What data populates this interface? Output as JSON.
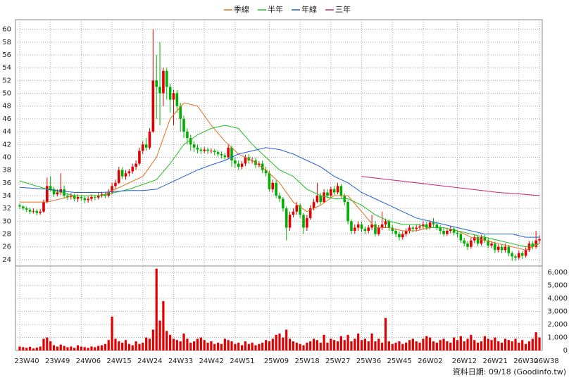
{
  "chart_data": {
    "type": "candlestick",
    "categories": [
      "23W40",
      null,
      null,
      null,
      null,
      null,
      null,
      null,
      null,
      "23W49",
      null,
      null,
      null,
      null,
      null,
      null,
      null,
      null,
      "24W06",
      null,
      null,
      null,
      null,
      null,
      null,
      null,
      null,
      "24W15",
      null,
      null,
      null,
      null,
      null,
      null,
      null,
      null,
      "24W24",
      null,
      null,
      null,
      null,
      null,
      null,
      null,
      null,
      "24W33",
      null,
      null,
      null,
      null,
      null,
      null,
      null,
      null,
      "24W42",
      null,
      null,
      null,
      null,
      null,
      null,
      null,
      null,
      "24W51",
      null,
      null,
      null,
      null,
      null,
      null,
      null,
      null,
      null,
      "25W09",
      null,
      null,
      null,
      null,
      null,
      null,
      null,
      null,
      "25W18",
      null,
      null,
      null,
      null,
      null,
      null,
      null,
      null,
      "25W27",
      null,
      null,
      null,
      null,
      null,
      null,
      null,
      null,
      "25W36",
      null,
      null,
      null,
      null,
      null,
      null,
      null,
      null,
      "25W45",
      null,
      null,
      null,
      null,
      null,
      null,
      null,
      null,
      "26W02",
      null,
      null,
      null,
      null,
      null,
      null,
      null,
      null,
      null,
      "26W12",
      null,
      null,
      null,
      null,
      null,
      null,
      null,
      null,
      "26W21",
      null,
      null,
      null,
      null,
      null,
      null,
      null,
      null,
      "26W30",
      null,
      null,
      null,
      null,
      null,
      "26W38"
    ],
    "open": [
      32.5,
      32.3,
      32.0,
      31.8,
      31.5,
      31.6,
      31.3,
      31.5,
      33.0,
      35.5,
      35.0,
      34.2,
      34.5,
      35.0,
      34.0,
      33.8,
      34.0,
      33.5,
      33.8,
      33.6,
      33.3,
      33.5,
      33.8,
      33.7,
      34.0,
      34.2,
      34.0,
      34.5,
      35.5,
      36.0,
      38.0,
      37.0,
      37.5,
      37.8,
      38.5,
      39.0,
      41.0,
      42.0,
      41.5,
      44.0,
      52.0,
      51.0,
      50.0,
      53.5,
      51.0,
      49.0,
      50.0,
      48.0,
      46.0,
      44.0,
      43.0,
      42.0,
      41.5,
      41.2,
      41.0,
      41.2,
      41.0,
      41.0,
      40.8,
      40.5,
      40.3,
      40.0,
      41.5,
      39.5,
      39.0,
      38.5,
      39.0,
      40.0,
      39.5,
      39.5,
      38.8,
      39.0,
      38.0,
      37.5,
      35.0,
      36.0,
      34.0,
      33.5,
      32.0,
      29.0,
      31.0,
      31.5,
      32.5,
      31.0,
      29.0,
      30.5,
      32.0,
      33.0,
      34.0,
      33.0,
      34.5,
      34.0,
      35.0,
      34.5,
      35.5,
      34.0,
      33.0,
      30.0,
      28.5,
      29.0,
      29.5,
      28.8,
      28.5,
      29.0,
      29.5,
      28.0,
      29.0,
      29.5,
      30.0,
      29.0,
      28.5,
      28.0,
      27.5,
      28.0,
      28.5,
      29.0,
      28.8,
      29.0,
      29.2,
      29.5,
      29.0,
      29.8,
      29.5,
      29.0,
      28.5,
      28.0,
      28.5,
      28.8,
      28.2,
      28.0,
      27.0,
      26.5,
      26.0,
      27.0,
      27.5,
      26.5,
      27.5,
      27.0,
      26.2,
      26.5,
      25.5,
      26.0,
      25.5,
      26.0,
      25.0,
      24.5,
      24.3,
      25.0,
      24.6,
      25.5,
      26.5,
      26.0,
      27.0
    ],
    "high": [
      32.8,
      32.5,
      32.3,
      32.1,
      32.0,
      31.9,
      31.9,
      33.4,
      36.8,
      37.0,
      35.4,
      35.0,
      37.5,
      35.6,
      34.4,
      34.4,
      34.3,
      34.2,
      34.1,
      33.9,
      33.9,
      34.2,
      34.1,
      34.4,
      34.6,
      34.5,
      35.0,
      36.0,
      36.5,
      38.5,
      38.4,
      38.0,
      38.2,
      39.0,
      39.5,
      41.5,
      42.5,
      43.0,
      44.5,
      60.0,
      56.0,
      58.0,
      54.0,
      54.0,
      51.5,
      50.5,
      50.5,
      48.5,
      46.5,
      44.5,
      43.5,
      42.5,
      42.0,
      41.6,
      41.6,
      41.5,
      41.4,
      41.3,
      41.1,
      40.9,
      40.7,
      41.9,
      41.8,
      40.0,
      39.5,
      39.4,
      40.4,
      40.5,
      40.0,
      39.9,
      39.4,
      39.5,
      38.5,
      37.9,
      36.5,
      36.4,
      34.5,
      33.8,
      32.3,
      31.5,
      32.0,
      33.0,
      32.8,
      31.3,
      31.0,
      32.5,
      33.5,
      36.0,
      34.4,
      35.0,
      35.0,
      35.4,
      35.5,
      36.0,
      35.8,
      34.3,
      33.3,
      30.3,
      29.5,
      30.0,
      29.9,
      29.2,
      29.4,
      31.0,
      30.0,
      29.4,
      31.5,
      30.4,
      30.3,
      29.4,
      28.9,
      28.4,
      28.4,
      28.9,
      29.4,
      29.3,
      29.4,
      29.6,
      30.0,
      29.9,
      30.2,
      30.5,
      29.9,
      29.4,
      28.9,
      28.9,
      29.2,
      29.1,
      28.6,
      28.3,
      27.4,
      26.9,
      27.4,
      27.9,
      27.8,
      27.9,
      27.9,
      27.3,
      26.9,
      26.8,
      26.4,
      26.4,
      26.5,
      26.3,
      25.3,
      24.8,
      25.4,
      25.3,
      25.9,
      26.9,
      26.9,
      28.5,
      27.8
    ],
    "low": [
      31.9,
      31.7,
      31.4,
      31.1,
      31.2,
      30.9,
      31.0,
      31.3,
      32.8,
      34.6,
      33.8,
      33.9,
      34.1,
      33.6,
      33.3,
      33.4,
      33.1,
      33.0,
      33.2,
      32.8,
      32.9,
      33.1,
      33.3,
      33.4,
      33.7,
      33.6,
      33.7,
      34.2,
      35.1,
      35.8,
      36.6,
      36.5,
      37.0,
      37.4,
      38.0,
      38.7,
      40.5,
      41.0,
      41.2,
      43.8,
      46.0,
      45.0,
      48.0,
      49.0,
      47.0,
      45.0,
      47.0,
      44.0,
      43.0,
      42.0,
      41.0,
      40.8,
      40.6,
      40.5,
      40.6,
      40.5,
      40.6,
      40.3,
      40.1,
      39.8,
      39.5,
      39.7,
      38.5,
      38.3,
      38.0,
      38.1,
      38.6,
      39.0,
      39.0,
      38.3,
      38.4,
      37.5,
      37.0,
      34.6,
      34.5,
      33.6,
      33.0,
      31.5,
      27.0,
      28.5,
      30.6,
      31.0,
      30.5,
      28.0,
      28.5,
      30.2,
      31.7,
      32.8,
      32.6,
      32.8,
      33.6,
      33.7,
      34.1,
      34.2,
      33.6,
      32.5,
      29.5,
      28.0,
      28.0,
      28.5,
      28.3,
      28.0,
      28.1,
      28.6,
      27.6,
      27.7,
      28.6,
      29.0,
      28.5,
      28.0,
      27.5,
      27.0,
      27.1,
      27.6,
      28.1,
      28.3,
      28.4,
      28.7,
      28.8,
      28.6,
      28.7,
      29.1,
      28.6,
      28.0,
      27.6,
      27.7,
      28.1,
      27.8,
      27.5,
      26.6,
      26.1,
      25.5,
      25.7,
      26.6,
      26.1,
      26.2,
      26.6,
      25.8,
      25.8,
      25.0,
      25.1,
      25.0,
      25.1,
      24.5,
      23.8,
      23.8,
      24.0,
      24.1,
      24.3,
      25.2,
      25.6,
      25.7,
      26.5
    ],
    "close": [
      32.3,
      32.0,
      31.8,
      31.5,
      31.6,
      31.3,
      31.5,
      33.0,
      35.5,
      35.0,
      34.2,
      34.5,
      35.0,
      34.0,
      33.8,
      34.0,
      33.5,
      33.8,
      33.6,
      33.3,
      33.5,
      33.8,
      33.7,
      34.0,
      34.2,
      34.0,
      34.5,
      35.5,
      36.0,
      38.0,
      37.0,
      37.5,
      37.8,
      38.5,
      39.0,
      41.0,
      42.0,
      41.5,
      44.0,
      52.0,
      51.0,
      50.0,
      53.5,
      51.0,
      49.0,
      50.0,
      48.0,
      46.0,
      44.0,
      43.0,
      42.0,
      41.5,
      41.2,
      41.0,
      41.2,
      41.0,
      41.0,
      40.8,
      40.5,
      40.3,
      40.0,
      41.5,
      39.5,
      39.0,
      38.5,
      39.0,
      40.0,
      39.5,
      39.5,
      38.8,
      39.0,
      38.0,
      37.5,
      35.0,
      36.0,
      34.0,
      33.5,
      32.0,
      29.0,
      31.0,
      31.5,
      32.5,
      31.0,
      29.0,
      30.5,
      32.0,
      33.0,
      34.0,
      33.0,
      34.5,
      34.0,
      35.0,
      34.5,
      35.5,
      34.0,
      33.0,
      30.0,
      28.5,
      29.0,
      29.5,
      28.8,
      28.5,
      29.0,
      29.5,
      28.0,
      29.0,
      29.5,
      30.0,
      29.0,
      28.5,
      28.0,
      27.5,
      28.0,
      28.5,
      29.0,
      28.8,
      29.0,
      29.2,
      29.5,
      29.0,
      29.8,
      29.5,
      29.0,
      28.5,
      28.0,
      28.5,
      28.8,
      28.2,
      28.0,
      27.0,
      26.5,
      26.0,
      27.0,
      27.5,
      26.5,
      27.5,
      27.0,
      26.2,
      26.5,
      25.5,
      26.0,
      25.5,
      26.0,
      25.0,
      24.5,
      24.3,
      25.0,
      24.6,
      25.5,
      26.5,
      26.0,
      27.0,
      27.2
    ],
    "volume": [
      300,
      250,
      200,
      280,
      150,
      220,
      300,
      900,
      1000,
      700,
      400,
      300,
      450,
      350,
      250,
      300,
      200,
      400,
      300,
      250,
      200,
      300,
      250,
      350,
      400,
      500,
      800,
      2600,
      900,
      700,
      600,
      800,
      500,
      400,
      700,
      500,
      600,
      1000,
      900,
      1600,
      6300,
      2300,
      3800,
      1500,
      1200,
      900,
      800,
      700,
      1300,
      900,
      600,
      700,
      900,
      1000,
      800,
      600,
      700,
      500,
      600,
      500,
      900,
      800,
      700,
      500,
      600,
      400,
      700,
      500,
      600,
      400,
      500,
      600,
      800,
      700,
      900,
      1200,
      1300,
      1000,
      1600,
      900,
      700,
      600,
      500,
      400,
      600,
      700,
      900,
      800,
      600,
      1200,
      600,
      900,
      800,
      700,
      1100,
      800,
      1200,
      700,
      900,
      1300,
      800,
      900,
      700,
      1300,
      700,
      900,
      600,
      2500,
      700,
      500,
      600,
      700,
      500,
      600,
      800,
      900,
      700,
      600,
      900,
      1100,
      1000,
      700,
      600,
      800,
      900,
      700,
      600,
      1000,
      800,
      1100,
      700,
      900,
      1200,
      800,
      600,
      700,
      1100,
      900,
      800,
      1000,
      700,
      600,
      900,
      800,
      700,
      900,
      600,
      800,
      500,
      700,
      900,
      1400,
      1000
    ],
    "up_color": "#e00000",
    "down_color": "#00b000",
    "volume_color": "#e00000",
    "series": [
      {
        "name": "季線",
        "color": "#e07020",
        "x": [
          0,
          8,
          16,
          24,
          32,
          36,
          40,
          44,
          48,
          52,
          56,
          60,
          64,
          68,
          72,
          76,
          80,
          84,
          88,
          92,
          96,
          100,
          104,
          108,
          112,
          116,
          120,
          124,
          128,
          132,
          136,
          140,
          144,
          148,
          152
        ],
        "values": [
          33,
          33,
          34,
          34,
          36,
          37,
          40,
          46,
          48.5,
          48,
          45,
          42.5,
          40.5,
          39.5,
          38,
          36,
          33,
          31.5,
          32.5,
          34,
          34,
          31.5,
          29,
          29,
          28.5,
          28.5,
          29,
          29,
          28.5,
          27.5,
          27,
          26.5,
          26,
          25.5,
          26.5
        ]
      },
      {
        "name": "半年",
        "color": "#20c020",
        "x": [
          0,
          8,
          16,
          24,
          32,
          40,
          44,
          48,
          52,
          56,
          60,
          64,
          68,
          72,
          76,
          80,
          84,
          88,
          92,
          96,
          100,
          104,
          108,
          112,
          116,
          120,
          124,
          128,
          132,
          136,
          140,
          144,
          148,
          152
        ],
        "values": [
          36.3,
          35,
          34,
          34,
          35,
          36.5,
          39,
          42,
          43.5,
          44.5,
          45,
          44.5,
          42,
          40,
          38,
          37,
          35,
          34,
          33.5,
          33.5,
          32.5,
          31,
          30,
          29.5,
          29.5,
          29,
          29,
          28.5,
          28,
          27.5,
          27,
          26.5,
          26,
          26.5
        ]
      },
      {
        "name": "年線",
        "color": "#2060d0",
        "x": [
          0,
          8,
          16,
          24,
          32,
          36,
          40,
          44,
          48,
          52,
          56,
          60,
          64,
          68,
          72,
          76,
          80,
          84,
          88,
          92,
          96,
          100,
          104,
          108,
          112,
          116,
          120,
          124,
          128,
          132,
          136,
          140,
          144,
          148,
          152
        ],
        "values": [
          35.3,
          35,
          34.5,
          34.5,
          34.8,
          34.8,
          35,
          36,
          37,
          38,
          38.8,
          39.5,
          40.5,
          41,
          41.5,
          41.2,
          40.5,
          39.5,
          38.5,
          37,
          36,
          34.5,
          33.5,
          32.5,
          31.5,
          30.5,
          30,
          29.5,
          29,
          28.5,
          28,
          28,
          28,
          27.5,
          27.5
        ]
      },
      {
        "name": "三年",
        "color": "#d02070",
        "x": [
          100,
          108,
          116,
          124,
          132,
          140,
          148,
          152
        ],
        "values": [
          37,
          36.5,
          36,
          35.5,
          35,
          34.5,
          34.2,
          34
        ]
      }
    ],
    "ylim": [
      23,
      61.5
    ],
    "yticks": [
      24,
      26,
      28,
      30,
      32,
      34,
      36,
      38,
      40,
      42,
      44,
      46,
      48,
      50,
      52,
      54,
      56,
      58,
      60
    ],
    "volume_ylim": [
      0,
      6500
    ],
    "volume_yticks": [
      0,
      {
        "value": 1000,
        "label": "1,000"
      },
      {
        "value": 2000,
        "label": "2,000"
      },
      {
        "value": 3000,
        "label": "3,000"
      },
      {
        "value": 4000,
        "label": "4,000"
      },
      {
        "value": 5000,
        "label": "5,000"
      },
      {
        "value": 6000,
        "label": "6,000"
      }
    ],
    "grid": true,
    "footnote": "資料日期: 09/18  (Goodinfo.tw)"
  }
}
